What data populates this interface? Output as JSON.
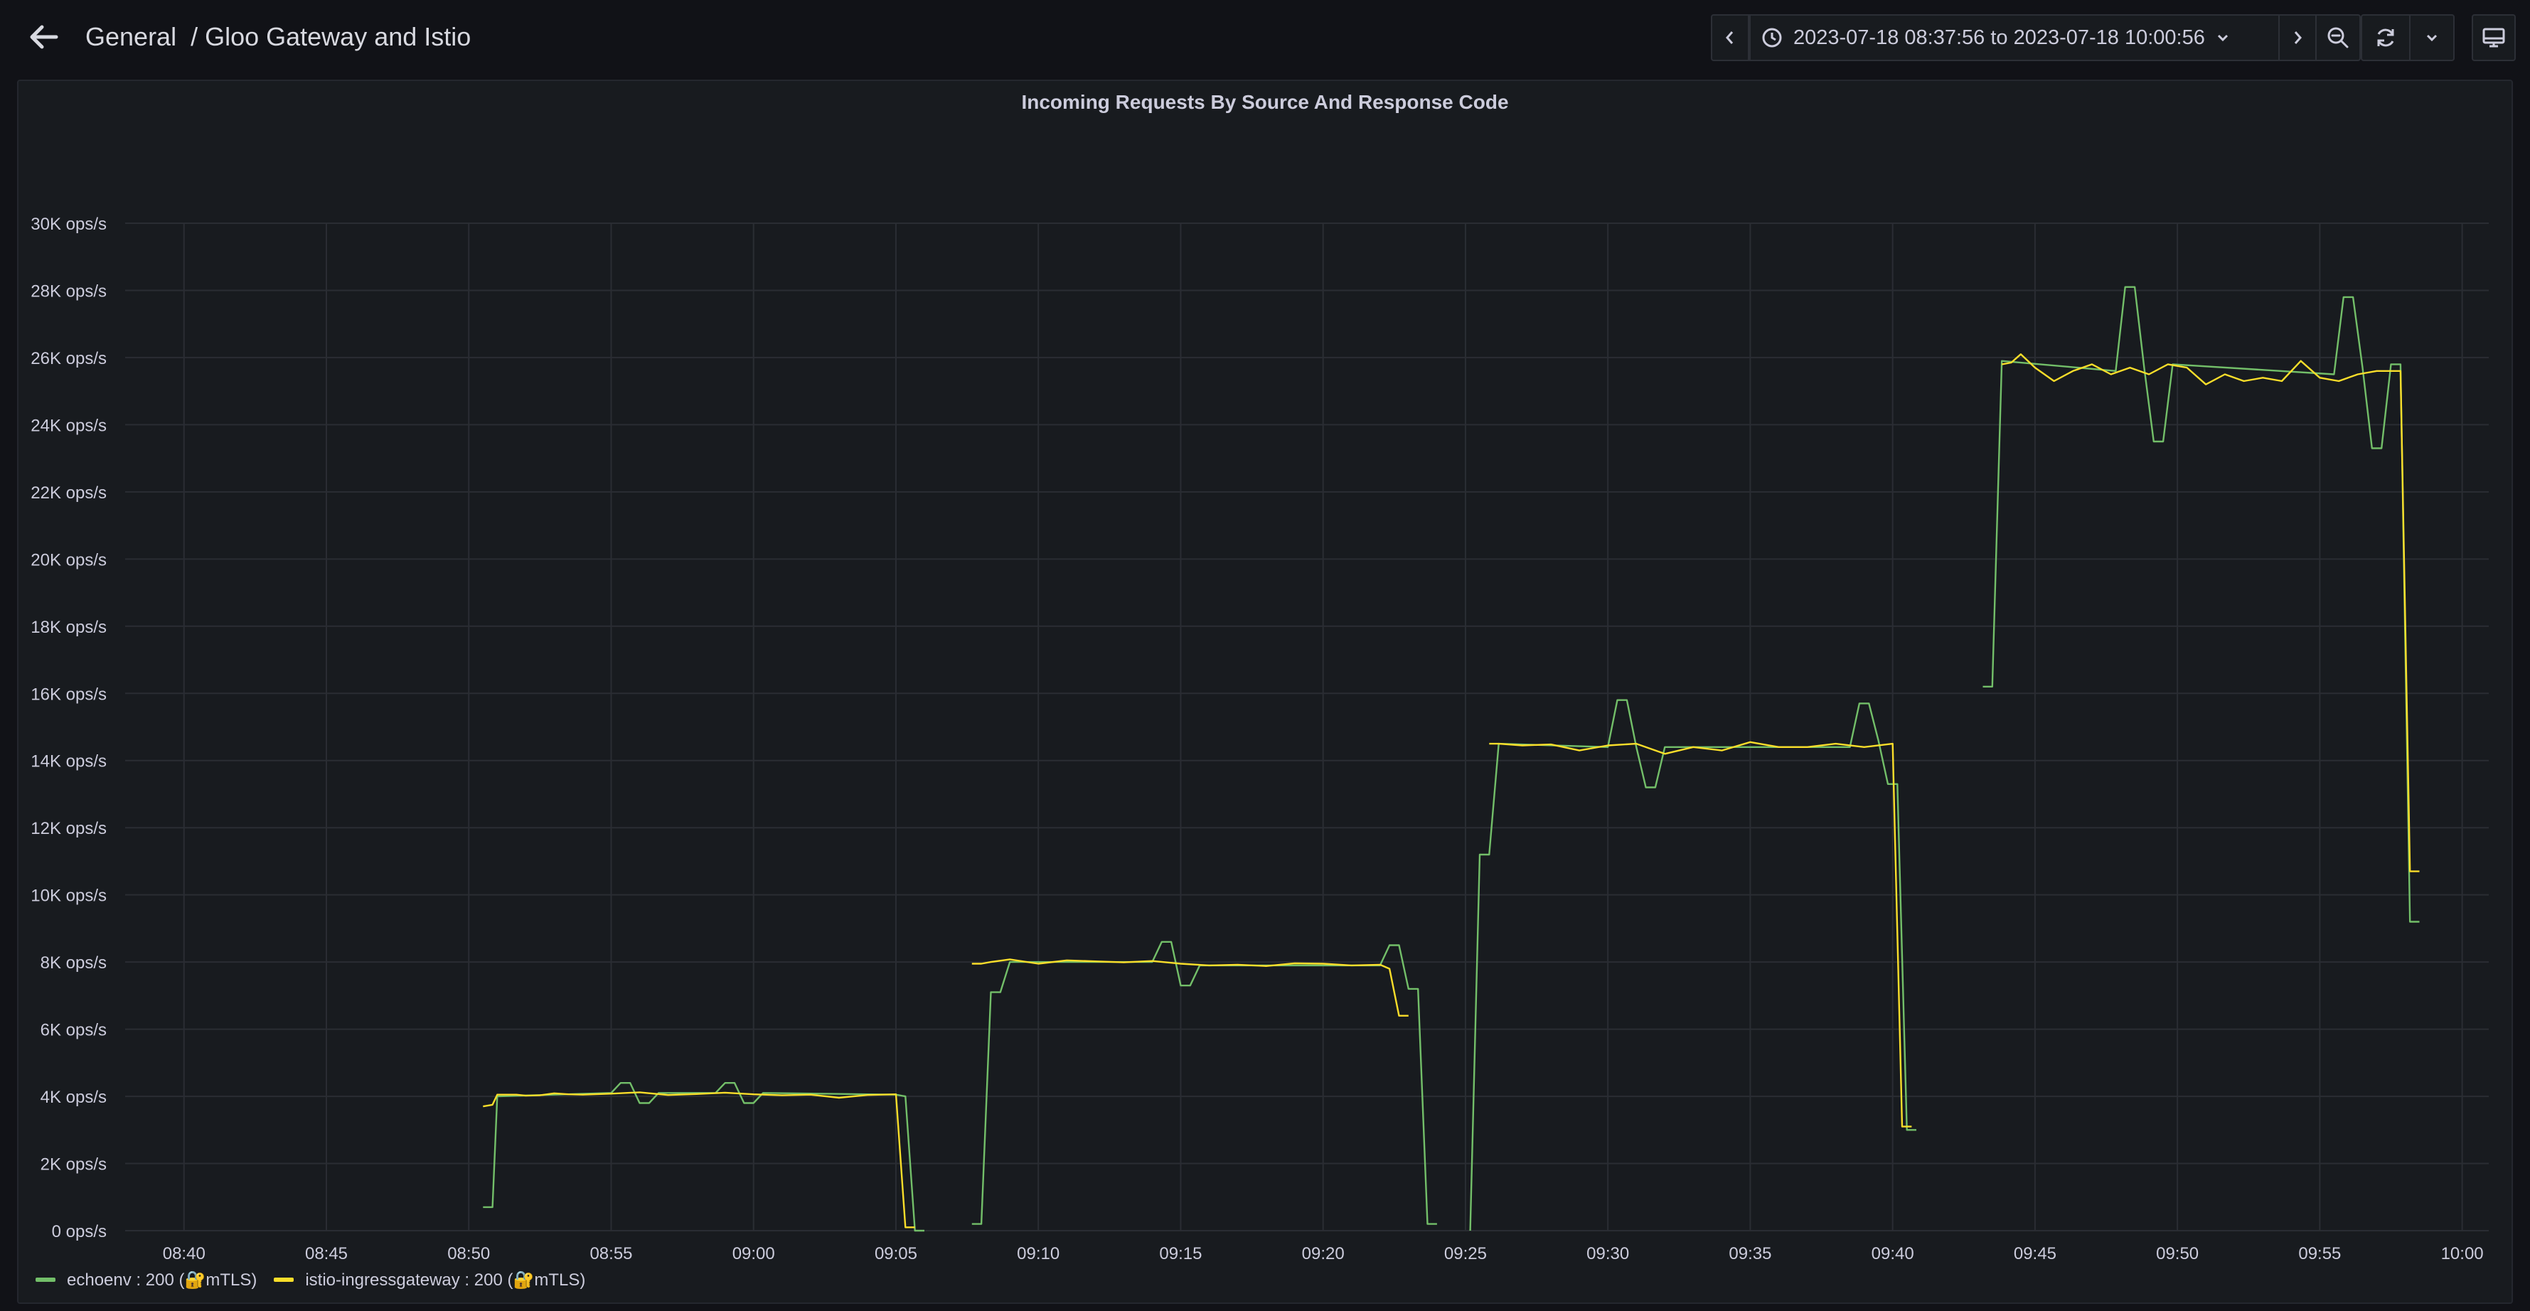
{
  "header": {
    "breadcrumb_folder": "General",
    "breadcrumb_separator": "/",
    "dashboard_title": "Gloo Gateway and Istio"
  },
  "toolbar": {
    "time_range": "2023-07-18 08:37:56 to 2023-07-18 10:00:56",
    "icons": [
      "arrow-left-icon",
      "chevron-left-icon",
      "clock-icon",
      "chevron-down-icon",
      "chevron-right-icon",
      "zoom-out-icon",
      "refresh-icon",
      "chevron-down-icon",
      "tv-icon"
    ]
  },
  "panel": {
    "title": "Incoming Requests By Source And Response Code"
  },
  "colors": {
    "background": "#111217",
    "panel": "#181b1f",
    "grid": "#2a2d33",
    "echoenv": "#73bf69",
    "istio": "#fade2a"
  },
  "chart_data": {
    "type": "line",
    "title": "Incoming Requests By Source And Response Code",
    "y_unit": "ops/s",
    "ylim": [
      0,
      30000
    ],
    "y_ticks": [
      "0 ops/s",
      "2K ops/s",
      "4K ops/s",
      "6K ops/s",
      "8K ops/s",
      "10K ops/s",
      "12K ops/s",
      "14K ops/s",
      "16K ops/s",
      "18K ops/s",
      "20K ops/s",
      "22K ops/s",
      "24K ops/s",
      "26K ops/s",
      "28K ops/s",
      "30K ops/s"
    ],
    "x_ticks": [
      "08:40",
      "08:45",
      "08:50",
      "08:55",
      "09:00",
      "09:05",
      "09:10",
      "09:15",
      "09:20",
      "09:25",
      "09:30",
      "09:35",
      "09:40",
      "09:45",
      "09:50",
      "09:55",
      "10:00"
    ],
    "xlim": [
      "08:37:56",
      "10:00:56"
    ],
    "grid": true,
    "legend_position": "bottom-left",
    "legend": [
      "echoenv : 200 (🔐mTLS)",
      "istio-ingressgateway : 200 (🔐mTLS)"
    ],
    "series": [
      {
        "name": "echoenv : 200 (🔐mTLS)",
        "color": "#73bf69",
        "segments": [
          [
            [
              "08:50:30",
              700
            ],
            [
              "08:50:50",
              700
            ],
            [
              "08:51:00",
              4000
            ],
            [
              "08:55:00",
              4100
            ],
            [
              "08:55:20",
              4400
            ],
            [
              "08:55:40",
              4400
            ],
            [
              "08:56:00",
              3800
            ],
            [
              "08:56:20",
              3800
            ],
            [
              "08:56:40",
              4100
            ],
            [
              "08:58:40",
              4100
            ],
            [
              "08:59:00",
              4400
            ],
            [
              "08:59:20",
              4400
            ],
            [
              "08:59:40",
              3800
            ],
            [
              "09:00:00",
              3800
            ],
            [
              "09:00:20",
              4100
            ],
            [
              "09:05:00",
              4050
            ],
            [
              "09:05:20",
              4000
            ],
            [
              "09:05:40",
              0
            ],
            [
              "09:06:00",
              0
            ]
          ],
          [
            [
              "09:07:40",
              200
            ],
            [
              "09:08:00",
              200
            ],
            [
              "09:08:20",
              7100
            ],
            [
              "09:08:40",
              7100
            ],
            [
              "09:09:00",
              8000
            ],
            [
              "09:14:00",
              8000
            ],
            [
              "09:14:20",
              8600
            ],
            [
              "09:14:40",
              8600
            ],
            [
              "09:15:00",
              7300
            ],
            [
              "09:15:20",
              7300
            ],
            [
              "09:15:40",
              7900
            ],
            [
              "09:22:00",
              7900
            ],
            [
              "09:22:20",
              8500
            ],
            [
              "09:22:40",
              8500
            ],
            [
              "09:23:00",
              7200
            ],
            [
              "09:23:20",
              7200
            ],
            [
              "09:23:40",
              200
            ],
            [
              "09:24:00",
              200
            ]
          ],
          [
            [
              "09:25:10",
              0
            ],
            [
              "09:25:30",
              11200
            ],
            [
              "09:25:50",
              11200
            ],
            [
              "09:26:10",
              14500
            ],
            [
              "09:30:00",
              14400
            ],
            [
              "09:30:20",
              15800
            ],
            [
              "09:30:40",
              15800
            ],
            [
              "09:31:00",
              14400
            ],
            [
              "09:31:20",
              13200
            ],
            [
              "09:31:40",
              13200
            ],
            [
              "09:32:00",
              14400
            ],
            [
              "09:38:30",
              14400
            ],
            [
              "09:38:50",
              15700
            ],
            [
              "09:39:10",
              15700
            ],
            [
              "09:39:30",
              14600
            ],
            [
              "09:39:50",
              13300
            ],
            [
              "09:40:10",
              13300
            ],
            [
              "09:40:30",
              3000
            ],
            [
              "09:40:50",
              3000
            ]
          ],
          [
            [
              "09:43:10",
              16200
            ],
            [
              "09:43:30",
              16200
            ],
            [
              "09:43:50",
              25900
            ],
            [
              "09:47:50",
              25600
            ],
            [
              "09:48:10",
              28100
            ],
            [
              "09:48:30",
              28100
            ],
            [
              "09:48:50",
              25700
            ],
            [
              "09:49:10",
              23500
            ],
            [
              "09:49:30",
              23500
            ],
            [
              "09:49:50",
              25800
            ],
            [
              "09:55:30",
              25500
            ],
            [
              "09:55:50",
              27800
            ],
            [
              "09:56:10",
              27800
            ],
            [
              "09:56:30",
              25700
            ],
            [
              "09:56:50",
              23300
            ],
            [
              "09:57:10",
              23300
            ],
            [
              "09:57:30",
              25800
            ],
            [
              "09:57:50",
              25800
            ],
            [
              "09:58:10",
              9200
            ],
            [
              "09:58:30",
              9200
            ]
          ]
        ]
      },
      {
        "name": "istio-ingressgateway : 200 (🔐mTLS)",
        "color": "#fade2a",
        "segments": [
          [
            [
              "08:50:30",
              3700
            ],
            [
              "08:50:50",
              3750
            ],
            [
              "08:51:00",
              4050
            ],
            [
              "08:51:40",
              4050
            ],
            [
              "08:52:00",
              4020
            ],
            [
              "08:52:30",
              4030
            ],
            [
              "08:53:00",
              4090
            ],
            [
              "08:53:30",
              4060
            ],
            [
              "08:54:00",
              4050
            ],
            [
              "08:55:00",
              4080
            ],
            [
              "08:56:00",
              4120
            ],
            [
              "08:57:00",
              4040
            ],
            [
              "08:58:00",
              4070
            ],
            [
              "08:59:00",
              4110
            ],
            [
              "09:00:00",
              4060
            ],
            [
              "09:01:00",
              4030
            ],
            [
              "09:02:00",
              4050
            ],
            [
              "09:03:00",
              3960
            ],
            [
              "09:04:00",
              4040
            ],
            [
              "09:05:00",
              4060
            ],
            [
              "09:05:20",
              100
            ],
            [
              "09:05:40",
              100
            ]
          ],
          [
            [
              "09:07:40",
              7950
            ],
            [
              "09:08:00",
              7950
            ],
            [
              "09:08:20",
              8000
            ],
            [
              "09:09:00",
              8080
            ],
            [
              "09:10:00",
              7950
            ],
            [
              "09:11:00",
              8050
            ],
            [
              "09:12:00",
              8020
            ],
            [
              "09:13:00",
              7990
            ],
            [
              "09:14:00",
              8030
            ],
            [
              "09:15:00",
              7950
            ],
            [
              "09:16:00",
              7900
            ],
            [
              "09:17:00",
              7920
            ],
            [
              "09:18:00",
              7880
            ],
            [
              "09:19:00",
              7960
            ],
            [
              "09:20:00",
              7950
            ],
            [
              "09:21:00",
              7900
            ],
            [
              "09:22:00",
              7920
            ],
            [
              "09:22:20",
              7800
            ],
            [
              "09:22:40",
              6400
            ],
            [
              "09:23:00",
              6400
            ]
          ],
          [
            [
              "09:25:50",
              14500
            ],
            [
              "09:26:10",
              14500
            ],
            [
              "09:27:00",
              14450
            ],
            [
              "09:28:00",
              14480
            ],
            [
              "09:29:00",
              14300
            ],
            [
              "09:30:00",
              14450
            ],
            [
              "09:31:00",
              14500
            ],
            [
              "09:32:00",
              14200
            ],
            [
              "09:33:00",
              14400
            ],
            [
              "09:34:00",
              14300
            ],
            [
              "09:35:00",
              14550
            ],
            [
              "09:36:00",
              14400
            ],
            [
              "09:37:00",
              14400
            ],
            [
              "09:38:00",
              14500
            ],
            [
              "09:39:00",
              14400
            ],
            [
              "09:40:00",
              14500
            ],
            [
              "09:40:20",
              3100
            ],
            [
              "09:40:40",
              3100
            ]
          ],
          [
            [
              "09:43:50",
              25800
            ],
            [
              "09:44:10",
              25850
            ],
            [
              "09:44:30",
              26100
            ],
            [
              "09:45:00",
              25700
            ],
            [
              "09:45:40",
              25300
            ],
            [
              "09:46:20",
              25600
            ],
            [
              "09:47:00",
              25800
            ],
            [
              "09:47:40",
              25500
            ],
            [
              "09:48:20",
              25700
            ],
            [
              "09:49:00",
              25500
            ],
            [
              "09:49:40",
              25800
            ],
            [
              "09:50:20",
              25700
            ],
            [
              "09:51:00",
              25200
            ],
            [
              "09:51:40",
              25500
            ],
            [
              "09:52:20",
              25300
            ],
            [
              "09:53:00",
              25400
            ],
            [
              "09:53:40",
              25300
            ],
            [
              "09:54:20",
              25900
            ],
            [
              "09:55:00",
              25400
            ],
            [
              "09:55:40",
              25300
            ],
            [
              "09:56:20",
              25500
            ],
            [
              "09:57:00",
              25600
            ],
            [
              "09:57:50",
              25600
            ],
            [
              "09:58:10",
              10700
            ],
            [
              "09:58:30",
              10700
            ]
          ]
        ]
      }
    ]
  }
}
